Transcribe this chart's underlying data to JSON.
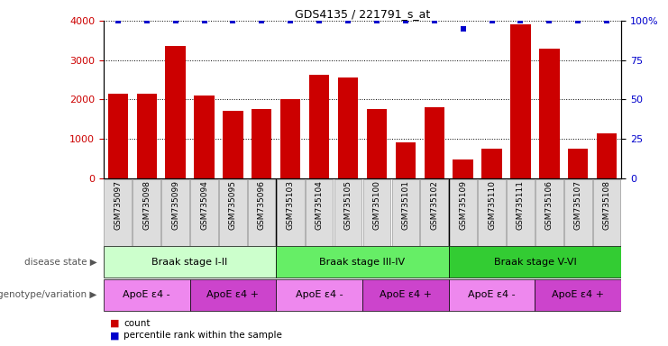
{
  "title": "GDS4135 / 221791_s_at",
  "samples": [
    "GSM735097",
    "GSM735098",
    "GSM735099",
    "GSM735094",
    "GSM735095",
    "GSM735096",
    "GSM735103",
    "GSM735104",
    "GSM735105",
    "GSM735100",
    "GSM735101",
    "GSM735102",
    "GSM735109",
    "GSM735110",
    "GSM735111",
    "GSM735106",
    "GSM735107",
    "GSM735108"
  ],
  "counts": [
    2150,
    2150,
    3350,
    2100,
    1720,
    1760,
    2000,
    2630,
    2550,
    1760,
    900,
    1800,
    480,
    760,
    3900,
    3300,
    760,
    1130
  ],
  "percentile_ranks": [
    100,
    100,
    100,
    100,
    100,
    100,
    100,
    100,
    100,
    100,
    100,
    100,
    95,
    100,
    100,
    100,
    100,
    100
  ],
  "bar_color": "#cc0000",
  "percentile_color": "#0000cc",
  "ylim_left": [
    0,
    4000
  ],
  "ylim_right": [
    0,
    100
  ],
  "yticks_left": [
    0,
    1000,
    2000,
    3000,
    4000
  ],
  "yticks_right": [
    0,
    25,
    50,
    75,
    100
  ],
  "disease_states": [
    {
      "label": "Braak stage I-II",
      "start": 0,
      "end": 6,
      "color": "#ccffcc"
    },
    {
      "label": "Braak stage III-IV",
      "start": 6,
      "end": 12,
      "color": "#66ee66"
    },
    {
      "label": "Braak stage V-VI",
      "start": 12,
      "end": 18,
      "color": "#33cc33"
    }
  ],
  "genotype_groups": [
    {
      "label": "ApoE ε4 -",
      "start": 0,
      "end": 3,
      "color": "#ee88ee"
    },
    {
      "label": "ApoE ε4 +",
      "start": 3,
      "end": 6,
      "color": "#cc44cc"
    },
    {
      "label": "ApoE ε4 -",
      "start": 6,
      "end": 9,
      "color": "#ee88ee"
    },
    {
      "label": "ApoE ε4 +",
      "start": 9,
      "end": 12,
      "color": "#cc44cc"
    },
    {
      "label": "ApoE ε4 -",
      "start": 12,
      "end": 15,
      "color": "#ee88ee"
    },
    {
      "label": "ApoE ε4 +",
      "start": 15,
      "end": 18,
      "color": "#cc44cc"
    }
  ],
  "disease_state_label": "disease state",
  "genotype_label": "genotype/variation",
  "legend_count_label": "count",
  "legend_percentile_label": "percentile rank within the sample",
  "background_color": "#ffffff",
  "xticklabel_bg": "#dddddd",
  "sample_separator_color": "#888888"
}
